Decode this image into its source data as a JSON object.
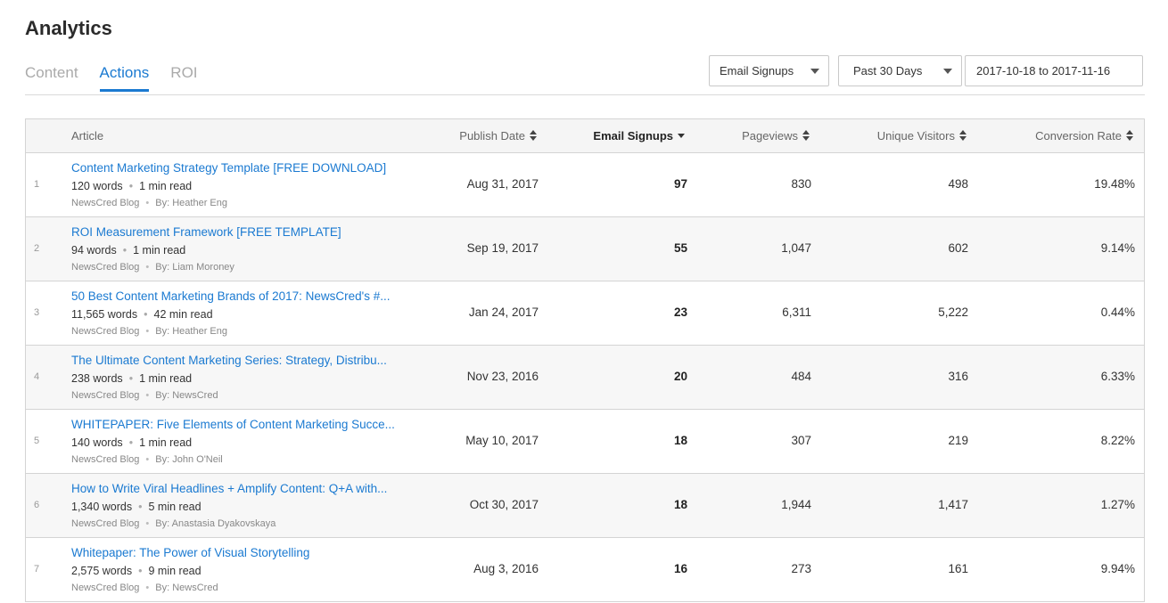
{
  "page": {
    "title": "Analytics"
  },
  "tabs": [
    {
      "label": "Content",
      "active": false
    },
    {
      "label": "Actions",
      "active": true
    },
    {
      "label": "ROI",
      "active": false
    }
  ],
  "filters": {
    "metric": "Email Signups",
    "range": "Past 30 Days",
    "dates": "2017-10-18 to 2017-11-16"
  },
  "colors": {
    "accent": "#1b7ad1",
    "header_bg": "#f5f5f5",
    "alt_row_bg": "#f7f7f7"
  },
  "table": {
    "columns": {
      "article": "Article",
      "publish_date": "Publish Date",
      "email_signups": "Email Signups",
      "pageviews": "Pageviews",
      "unique_visitors": "Unique Visitors",
      "conversion_rate": "Conversion Rate"
    },
    "sorted_by": "email_signups",
    "rows": [
      {
        "n": "1",
        "title": "Content Marketing Strategy Template [FREE DOWNLOAD]",
        "words": "120 words",
        "read": "1 min read",
        "source": "NewsCred Blog",
        "author": "By: Heather Eng",
        "date": "Aug 31, 2017",
        "signups": "97",
        "pageviews": "830",
        "visitors": "498",
        "conversion": "19.48%"
      },
      {
        "n": "2",
        "title": "ROI Measurement Framework [FREE TEMPLATE]",
        "words": "94 words",
        "read": "1 min read",
        "source": "NewsCred Blog",
        "author": "By: Liam Moroney",
        "date": "Sep 19, 2017",
        "signups": "55",
        "pageviews": "1,047",
        "visitors": "602",
        "conversion": "9.14%"
      },
      {
        "n": "3",
        "title": "50 Best Content Marketing Brands of 2017: NewsCred's #...",
        "words": "11,565 words",
        "read": "42 min read",
        "source": "NewsCred Blog",
        "author": "By: Heather Eng",
        "date": "Jan 24, 2017",
        "signups": "23",
        "pageviews": "6,311",
        "visitors": "5,222",
        "conversion": "0.44%"
      },
      {
        "n": "4",
        "title": "The Ultimate Content Marketing Series: Strategy, Distribu...",
        "words": "238 words",
        "read": "1 min read",
        "source": "NewsCred Blog",
        "author": "By: NewsCred",
        "date": "Nov 23, 2016",
        "signups": "20",
        "pageviews": "484",
        "visitors": "316",
        "conversion": "6.33%"
      },
      {
        "n": "5",
        "title": "WHITEPAPER: Five Elements of Content Marketing Succe...",
        "words": "140 words",
        "read": "1 min read",
        "source": "NewsCred Blog",
        "author": "By: John O'Neil",
        "date": "May 10, 2017",
        "signups": "18",
        "pageviews": "307",
        "visitors": "219",
        "conversion": "8.22%"
      },
      {
        "n": "6",
        "title": "How to Write Viral Headlines + Amplify Content: Q+A with...",
        "words": "1,340 words",
        "read": "5 min read",
        "source": "NewsCred Blog",
        "author": "By: Anastasia Dyakovskaya",
        "date": "Oct 30, 2017",
        "signups": "18",
        "pageviews": "1,944",
        "visitors": "1,417",
        "conversion": "1.27%"
      },
      {
        "n": "7",
        "title": "Whitepaper: The Power of Visual Storytelling",
        "words": "2,575 words",
        "read": "9 min read",
        "source": "NewsCred Blog",
        "author": "By: NewsCred",
        "date": "Aug 3, 2016",
        "signups": "16",
        "pageviews": "273",
        "visitors": "161",
        "conversion": "9.94%"
      }
    ]
  }
}
